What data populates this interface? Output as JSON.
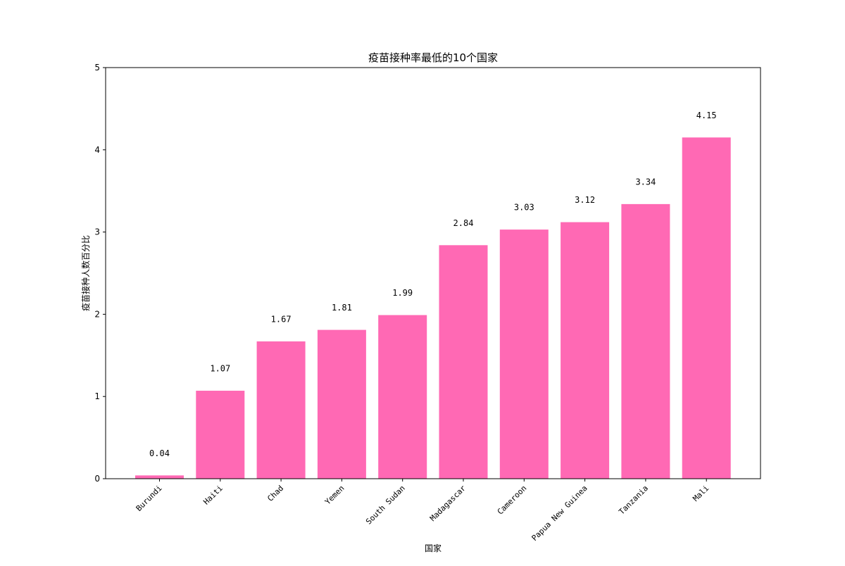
{
  "chart_data": {
    "type": "bar",
    "title": "疫苗接种率最低的10个国家",
    "xlabel": "国家",
    "ylabel": "疫苗接种人数百分比",
    "categories": [
      "Burundi",
      "Haiti",
      "Chad",
      "Yemen",
      "South Sudan",
      "Madagascar",
      "Cameroon",
      "Papua New Guinea",
      "Tanzania",
      "Mali"
    ],
    "values": [
      0.04,
      1.07,
      1.67,
      1.81,
      1.99,
      2.84,
      3.03,
      3.12,
      3.34,
      4.15
    ],
    "data_labels": [
      "0.04",
      "1.07",
      "1.67",
      "1.81",
      "1.99",
      "2.84",
      "3.03",
      "3.12",
      "3.34",
      "4.15"
    ],
    "ylim": [
      0,
      5
    ],
    "yticks": [
      0,
      1,
      2,
      3,
      4,
      5
    ],
    "ytick_labels": [
      "0",
      "1",
      "2",
      "3",
      "4",
      "5"
    ],
    "bar_color": "#ff69b4",
    "grid": false,
    "legend": "none"
  }
}
